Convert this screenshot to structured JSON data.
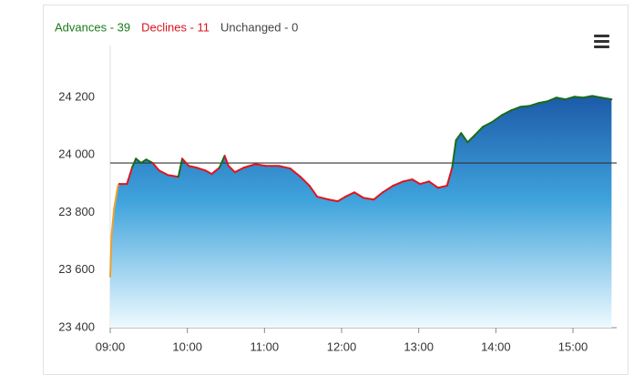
{
  "chart_data": {
    "type": "line",
    "legend": [
      {
        "text": "Advances - 39",
        "color": "#1a7a1a"
      },
      {
        "text": "Declines - 11",
        "color": "#d7141e"
      },
      {
        "text": "Unchanged - 0",
        "color": "#444444"
      }
    ],
    "x": [
      "09:00",
      "09:01",
      "09:03",
      "09:06",
      "09:07",
      "09:13",
      "09:17",
      "09:20",
      "09:24",
      "09:28",
      "09:33",
      "09:38",
      "09:45",
      "09:53",
      "09:56",
      "10:01",
      "10:07",
      "10:14",
      "10:19",
      "10:25",
      "10:29",
      "10:32",
      "10:37",
      "10:44",
      "10:53",
      "11:01",
      "11:11",
      "11:20",
      "11:28",
      "11:35",
      "11:41",
      "11:50",
      "11:57",
      "12:03",
      "12:10",
      "12:17",
      "12:25",
      "12:32",
      "12:40",
      "12:48",
      "12:55",
      "13:01",
      "13:08",
      "13:15",
      "13:22",
      "13:26",
      "13:29",
      "13:33",
      "13:38",
      "13:43",
      "13:50",
      "13:57",
      "14:05",
      "14:12",
      "14:19",
      "14:26",
      "14:33",
      "14:40",
      "14:47",
      "14:54",
      "15:01",
      "15:08",
      "15:15",
      "15:22",
      "15:30"
    ],
    "values": [
      23577,
      23719,
      23813,
      23893,
      23899,
      23899,
      23956,
      23987,
      23972,
      23984,
      23972,
      23946,
      23930,
      23924,
      23987,
      23962,
      23956,
      23946,
      23934,
      23956,
      23997,
      23962,
      23940,
      23956,
      23968,
      23962,
      23962,
      23953,
      23924,
      23893,
      23855,
      23845,
      23839,
      23855,
      23870,
      23851,
      23845,
      23870,
      23893,
      23908,
      23915,
      23899,
      23908,
      23886,
      23893,
      23956,
      24051,
      24076,
      24044,
      24066,
      24098,
      24114,
      24139,
      24155,
      24167,
      24170,
      24180,
      24186,
      24199,
      24193,
      24202,
      24199,
      24205,
      24199,
      24193
    ],
    "reference": 23972,
    "opening_end": "09:07",
    "up_color": "#1a6b1a",
    "down_color": "#e0141e",
    "opening_color": "#f0a030",
    "reference_color": "#333333",
    "xlim": [
      "09:00",
      "15:34"
    ],
    "xticks": [
      "09:00",
      "10:00",
      "11:00",
      "12:00",
      "13:00",
      "14:00",
      "15:00"
    ],
    "ylim": [
      23400,
      24380
    ],
    "yticks": [
      {
        "value": 23400,
        "label": "23 400"
      },
      {
        "value": 23600,
        "label": "23 600"
      },
      {
        "value": 23800,
        "label": "23 800"
      },
      {
        "value": 24000,
        "label": "24 000"
      },
      {
        "value": 24200,
        "label": "24 200"
      }
    ]
  }
}
